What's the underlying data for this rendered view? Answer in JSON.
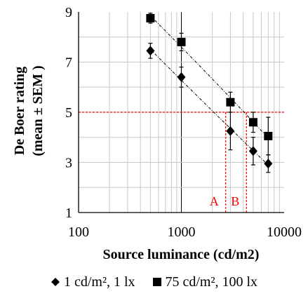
{
  "chart_data": {
    "type": "scatter",
    "xscale": "log",
    "xlim": [
      100,
      10000
    ],
    "ylim": [
      1,
      9
    ],
    "xticks": [
      "100",
      "1000",
      "10000"
    ],
    "yticks": [
      "1",
      "3",
      "5",
      "7",
      "9"
    ],
    "xlabel": "Source luminance (cd/m2)",
    "ylabel_line1": "De Boer rating",
    "ylabel_line2": "(mean ± SEM )",
    "grid": true,
    "legend_position": "bottom",
    "series": [
      {
        "name": "1 cd/m², 1 lx",
        "marker": "diamond",
        "color": "#000000",
        "points": [
          {
            "x": 500,
            "y": 7.45,
            "sem": 0.3
          },
          {
            "x": 1000,
            "y": 6.4,
            "sem": 0.4
          },
          {
            "x": 3000,
            "y": 4.25,
            "sem": 0.75
          },
          {
            "x": 5000,
            "y": 3.45,
            "sem": 0.55
          },
          {
            "x": 7000,
            "y": 2.95,
            "sem": 0.35
          }
        ]
      },
      {
        "name": "75 cd/m², 100 lx",
        "marker": "square",
        "color": "#000000",
        "points": [
          {
            "x": 500,
            "y": 8.75,
            "sem": 0.2
          },
          {
            "x": 1000,
            "y": 7.8,
            "sem": 0.35
          },
          {
            "x": 3000,
            "y": 5.4,
            "sem": 0.4
          },
          {
            "x": 5000,
            "y": 4.6,
            "sem": 0.4
          },
          {
            "x": 7000,
            "y": 4.05,
            "sem": 0.75
          }
        ]
      }
    ],
    "reference_line": {
      "y": 5,
      "color": "#ff0000"
    },
    "annotations": [
      {
        "label": "A",
        "x": 2700,
        "color": "#ff0000"
      },
      {
        "label": "B",
        "x": 4300,
        "color": "#ff0000"
      }
    ]
  },
  "legend": {
    "item1_label": "1 cd/m², 1 lx",
    "item2_label": "75 cd/m², 100 lx"
  }
}
